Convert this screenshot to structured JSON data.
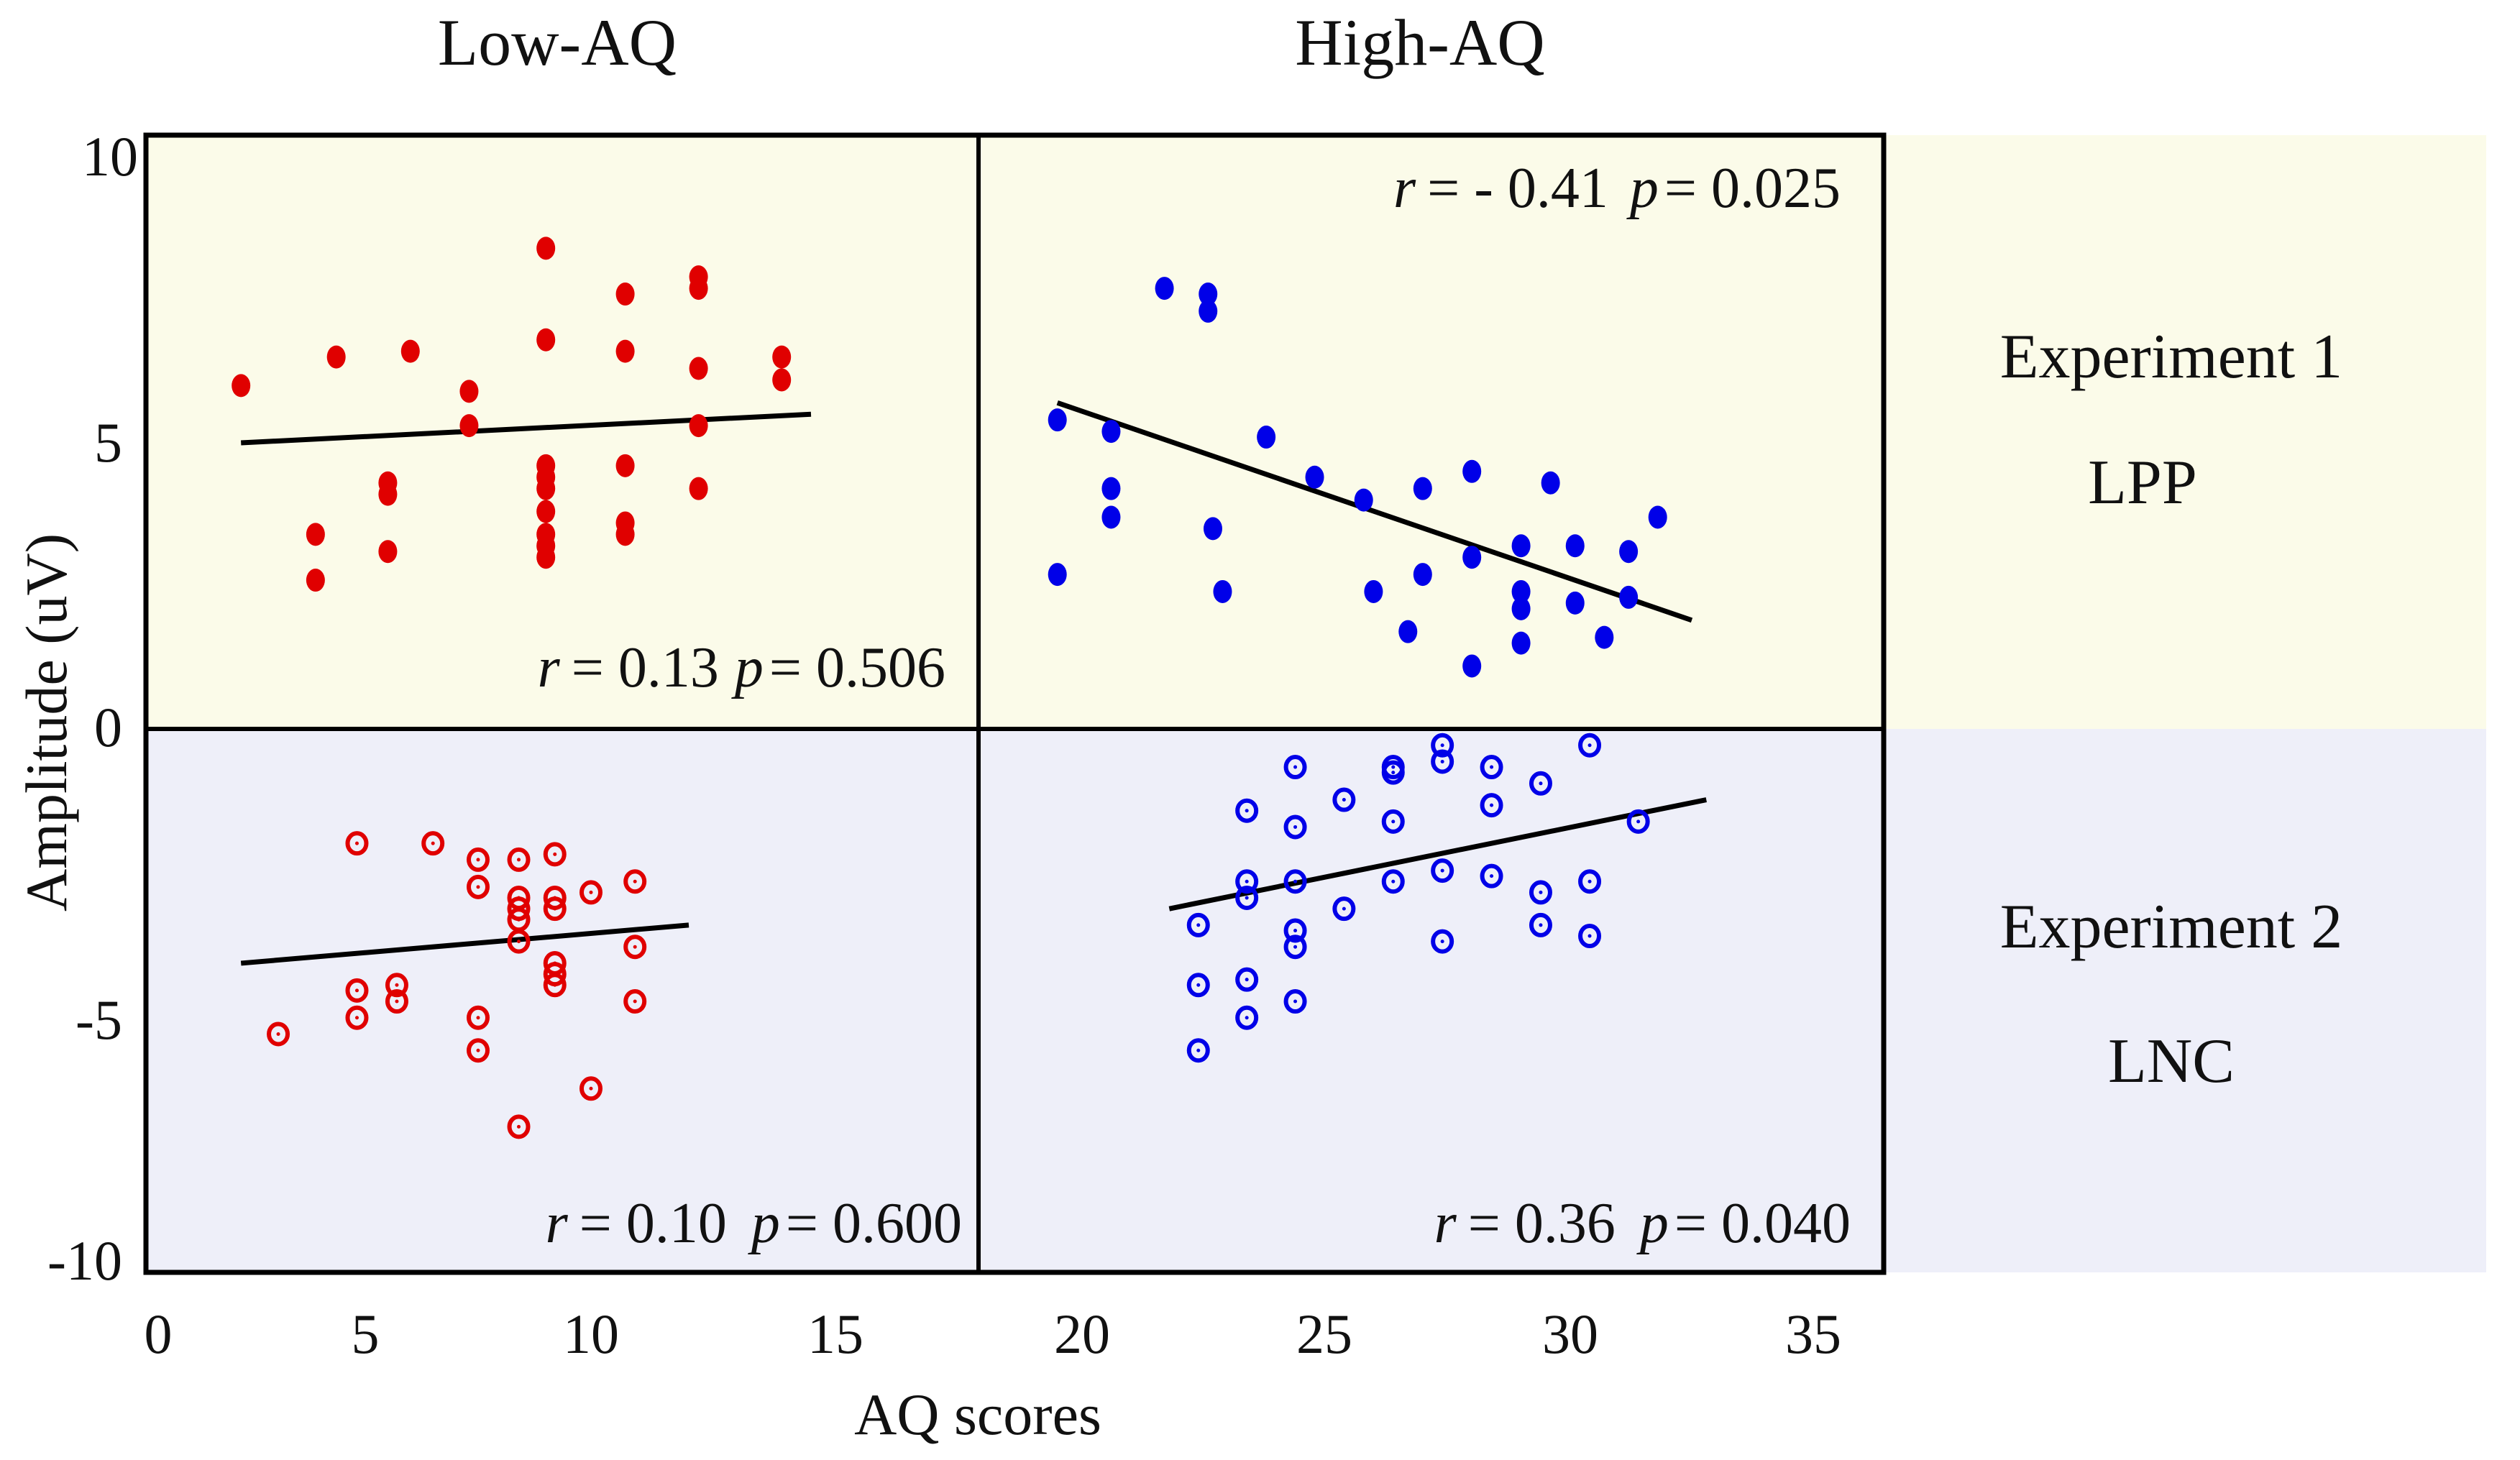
{
  "chart_data": {
    "type": "scatter",
    "xlabel": "AQ scores",
    "ylabel": "Amplitude (uV)",
    "xlim": [
      0,
      35
    ],
    "ylim": [
      -10,
      10
    ],
    "x_ticks": [
      "0",
      "5",
      "10",
      "15",
      "20",
      "25",
      "30",
      "35"
    ],
    "y_ticks": [
      "10",
      "5",
      "0",
      "-5",
      "-10"
    ],
    "column_titles": [
      "Low-AQ",
      "High-AQ"
    ],
    "row_labels": [
      {
        "experiment": "Experiment 1",
        "component": "LPP",
        "color": "#fbfbe9"
      },
      {
        "experiment": "Experiment 2",
        "component": "LNC",
        "color": "#eeeff9"
      }
    ],
    "panels": [
      {
        "name": "low-aq-experiment-1",
        "group": "Low-AQ",
        "experiment": "Experiment 1",
        "marker": "filled",
        "color": "#e00000",
        "r_label": "r",
        "r_text": "=  0.13",
        "p_label": "p",
        "p_text": "= 0.506",
        "fit": [
          [
            2,
            5.0
          ],
          [
            14.5,
            5.5
          ]
        ],
        "points": [
          [
            2,
            6
          ],
          [
            3.8,
            3.4
          ],
          [
            3.8,
            2.6
          ],
          [
            4.3,
            6.5
          ],
          [
            5.5,
            4.3
          ],
          [
            5.5,
            4.1
          ],
          [
            5.5,
            3.1
          ],
          [
            6,
            6.6
          ],
          [
            7.3,
            5.9
          ],
          [
            7.3,
            5.3
          ],
          [
            9,
            8.4
          ],
          [
            9,
            6.8
          ],
          [
            9,
            4.6
          ],
          [
            9,
            4.4
          ],
          [
            9,
            4.2
          ],
          [
            9,
            3.8
          ],
          [
            9,
            3.4
          ],
          [
            9,
            3.2
          ],
          [
            9,
            3.0
          ],
          [
            10.7,
            7.6
          ],
          [
            10.7,
            6.6
          ],
          [
            10.7,
            4.6
          ],
          [
            10.7,
            3.6
          ],
          [
            10.7,
            3.4
          ],
          [
            12.2,
            7.9
          ],
          [
            12.2,
            7.7
          ],
          [
            12.2,
            6.3
          ],
          [
            12.2,
            5.3
          ],
          [
            12.2,
            4.2
          ],
          [
            13.9,
            6.5
          ],
          [
            13.9,
            6.1
          ]
        ]
      },
      {
        "name": "high-aq-experiment-1",
        "group": "High-AQ",
        "experiment": "Experiment 1",
        "marker": "filled",
        "color": "#0000e8",
        "r_label": "r",
        "r_text": "= - 0.41",
        "p_label": "p",
        "p_text": "= 0.025",
        "fit": [
          [
            19.5,
            5.7
          ],
          [
            32.5,
            1.9
          ]
        ],
        "points": [
          [
            19.5,
            5.4
          ],
          [
            19.5,
            2.7
          ],
          [
            20.6,
            5.2
          ],
          [
            20.6,
            4.2
          ],
          [
            20.6,
            3.7
          ],
          [
            21.7,
            7.7
          ],
          [
            22.6,
            7.6
          ],
          [
            22.6,
            7.3
          ],
          [
            22.7,
            3.5
          ],
          [
            22.9,
            2.4
          ],
          [
            23.8,
            5.1
          ],
          [
            24.8,
            4.4
          ],
          [
            25.8,
            4.0
          ],
          [
            26.0,
            2.4
          ],
          [
            26.7,
            1.7
          ],
          [
            27.0,
            4.2
          ],
          [
            27.0,
            2.7
          ],
          [
            28.0,
            4.5
          ],
          [
            28.0,
            3.0
          ],
          [
            28.0,
            1.1
          ],
          [
            29.0,
            3.2
          ],
          [
            29.0,
            2.4
          ],
          [
            29.0,
            2.1
          ],
          [
            29.0,
            1.5
          ],
          [
            29.6,
            4.3
          ],
          [
            30.1,
            3.2
          ],
          [
            30.1,
            2.2
          ],
          [
            30.7,
            1.6
          ],
          [
            31.2,
            3.1
          ],
          [
            31.2,
            2.3
          ],
          [
            31.8,
            3.7
          ]
        ]
      },
      {
        "name": "low-aq-experiment-2",
        "group": "Low-AQ",
        "experiment": "Experiment 2",
        "marker": "open",
        "color": "#e00000",
        "r_label": "r",
        "r_text": "=  0.10",
        "p_label": "p",
        "p_text": "= 0.600",
        "fit": [
          [
            2,
            -4.3
          ],
          [
            12,
            -3.6
          ]
        ],
        "points": [
          [
            2.9,
            -5.6
          ],
          [
            4.8,
            -2.1
          ],
          [
            4.8,
            -4.8
          ],
          [
            4.8,
            -5.3
          ],
          [
            5.7,
            -4.7
          ],
          [
            5.7,
            -5.0
          ],
          [
            6.5,
            -2.1
          ],
          [
            7.5,
            -2.4
          ],
          [
            7.5,
            -2.9
          ],
          [
            7.5,
            -5.3
          ],
          [
            7.5,
            -5.9
          ],
          [
            8.4,
            -2.4
          ],
          [
            8.4,
            -3.1
          ],
          [
            8.4,
            -3.3
          ],
          [
            8.4,
            -3.5
          ],
          [
            8.4,
            -3.9
          ],
          [
            8.4,
            -7.3
          ],
          [
            9.2,
            -2.3
          ],
          [
            9.2,
            -3.1
          ],
          [
            9.2,
            -3.3
          ],
          [
            9.2,
            -4.3
          ],
          [
            9.2,
            -4.5
          ],
          [
            9.2,
            -4.7
          ],
          [
            10.0,
            -3.0
          ],
          [
            10.0,
            -6.6
          ],
          [
            10.9,
            -2.8
          ],
          [
            10.9,
            -4.0
          ],
          [
            10.9,
            -5.0
          ]
        ]
      },
      {
        "name": "high-aq-experiment-2",
        "group": "High-AQ",
        "experiment": "Experiment 2",
        "marker": "open",
        "color": "#0000e8",
        "r_label": "r",
        "r_text": "=  0.36",
        "p_label": "p",
        "p_text": "=  0.040",
        "fit": [
          [
            21.8,
            -3.3
          ],
          [
            32.8,
            -1.3
          ]
        ],
        "points": [
          [
            22.4,
            -3.6
          ],
          [
            22.4,
            -4.7
          ],
          [
            22.4,
            -5.9
          ],
          [
            23.4,
            -1.5
          ],
          [
            23.4,
            -2.8
          ],
          [
            23.4,
            -3.1
          ],
          [
            23.4,
            -4.6
          ],
          [
            23.4,
            -5.3
          ],
          [
            24.4,
            -0.7
          ],
          [
            24.4,
            -1.8
          ],
          [
            24.4,
            -2.8
          ],
          [
            24.4,
            -3.7
          ],
          [
            24.4,
            -4.0
          ],
          [
            24.4,
            -5.0
          ],
          [
            25.4,
            -1.3
          ],
          [
            25.4,
            -3.3
          ],
          [
            26.4,
            -0.7
          ],
          [
            26.4,
            -0.8
          ],
          [
            26.4,
            -1.7
          ],
          [
            26.4,
            -2.8
          ],
          [
            27.4,
            -0.3
          ],
          [
            27.4,
            -0.6
          ],
          [
            27.4,
            -2.6
          ],
          [
            27.4,
            -3.9
          ],
          [
            28.4,
            -0.7
          ],
          [
            28.4,
            -1.4
          ],
          [
            28.4,
            -2.7
          ],
          [
            29.4,
            -1.0
          ],
          [
            29.4,
            -3.0
          ],
          [
            29.4,
            -3.6
          ],
          [
            30.4,
            -0.3
          ],
          [
            30.4,
            -2.8
          ],
          [
            30.4,
            -3.8
          ],
          [
            31.4,
            -1.7
          ]
        ]
      }
    ]
  }
}
